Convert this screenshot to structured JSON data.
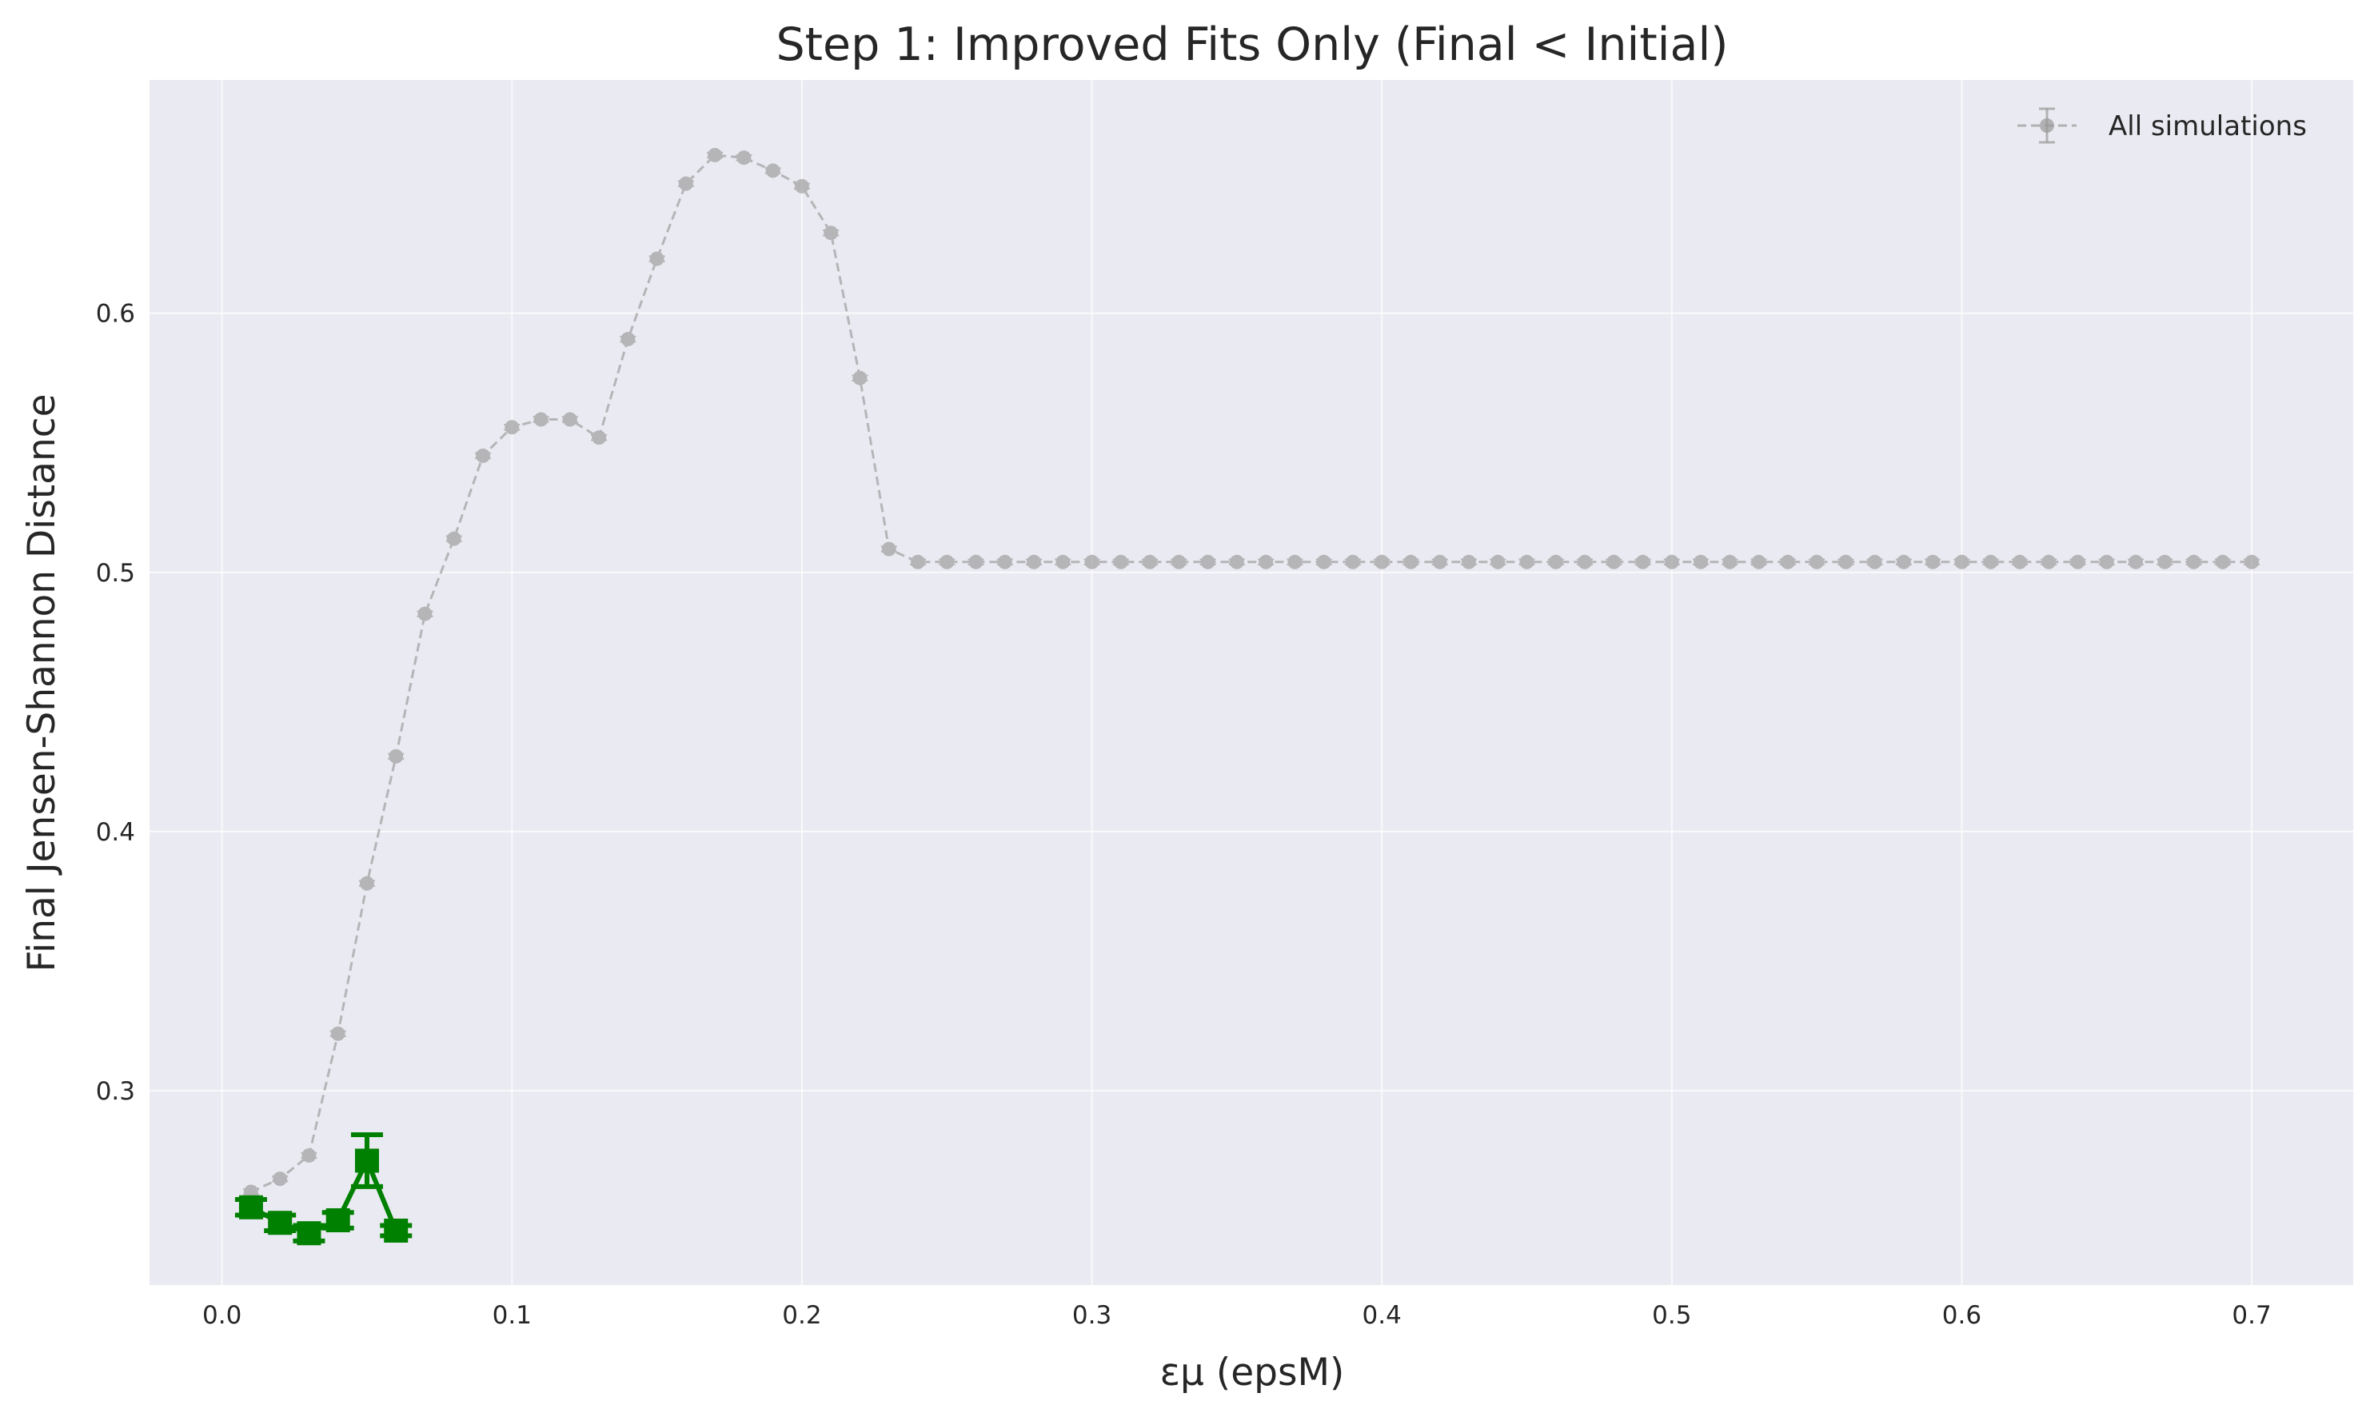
{
  "chart_data": {
    "type": "line",
    "title": "Step 1: Improved Fits Only (Final < Initial)",
    "xlabel": "εμ (epsM)",
    "ylabel": "Final Jensen-Shannon Distance",
    "xlim": [
      -0.025,
      0.735
    ],
    "ylim": [
      0.225,
      0.69
    ],
    "xticks": [
      0.0,
      0.1,
      0.2,
      0.3,
      0.4,
      0.5,
      0.6,
      0.7
    ],
    "xtick_labels": [
      "0.0",
      "0.1",
      "0.2",
      "0.3",
      "0.4",
      "0.5",
      "0.6",
      "0.7"
    ],
    "yticks": [
      0.3,
      0.4,
      0.5,
      0.6
    ],
    "ytick_labels": [
      "0.3",
      "0.4",
      "0.5",
      "0.6"
    ],
    "grid": true,
    "background_color": "#eaeaf2",
    "legend": {
      "placement": "top-right",
      "entries": [
        "All simulations"
      ]
    },
    "series": [
      {
        "name": "All simulations",
        "color": "#999999",
        "style": "dashed",
        "marker": "circle",
        "x": [
          0.01,
          0.02,
          0.03,
          0.04,
          0.05,
          0.06,
          0.07,
          0.08,
          0.09,
          0.1,
          0.11,
          0.12,
          0.13,
          0.14,
          0.15,
          0.16,
          0.17,
          0.18,
          0.19,
          0.2,
          0.21,
          0.22,
          0.23,
          0.24,
          0.25,
          0.26,
          0.27,
          0.28,
          0.29,
          0.3,
          0.31,
          0.32,
          0.33,
          0.34,
          0.35,
          0.36,
          0.37,
          0.38,
          0.39,
          0.4,
          0.41,
          0.42,
          0.43,
          0.44,
          0.45,
          0.46,
          0.47,
          0.48,
          0.49,
          0.5,
          0.51,
          0.52,
          0.53,
          0.54,
          0.55,
          0.56,
          0.57,
          0.58,
          0.59,
          0.6,
          0.61,
          0.62,
          0.63,
          0.64,
          0.65,
          0.66,
          0.67,
          0.68,
          0.69,
          0.7
        ],
        "y": [
          0.261,
          0.266,
          0.275,
          0.322,
          0.38,
          0.429,
          0.484,
          0.513,
          0.545,
          0.556,
          0.559,
          0.559,
          0.552,
          0.59,
          0.621,
          0.65,
          0.661,
          0.66,
          0.655,
          0.649,
          0.631,
          0.575,
          0.509,
          0.504,
          0.504,
          0.504,
          0.504,
          0.504,
          0.504,
          0.504,
          0.504,
          0.504,
          0.504,
          0.504,
          0.504,
          0.504,
          0.504,
          0.504,
          0.504,
          0.504,
          0.504,
          0.504,
          0.504,
          0.504,
          0.504,
          0.504,
          0.504,
          0.504,
          0.504,
          0.504,
          0.504,
          0.504,
          0.504,
          0.504,
          0.504,
          0.504,
          0.504,
          0.504,
          0.504,
          0.504,
          0.504,
          0.504,
          0.504,
          0.504,
          0.504,
          0.504,
          0.504,
          0.504,
          0.504,
          0.504
        ],
        "yerr": 0.001
      },
      {
        "color": "#008000",
        "style": "solid",
        "marker": "square",
        "x": [
          0.01,
          0.02,
          0.03,
          0.04,
          0.05,
          0.06
        ],
        "y": [
          0.255,
          0.249,
          0.245,
          0.25,
          0.273,
          0.246
        ],
        "yerr": [
          0.003,
          0.003,
          0.003,
          0.003,
          0.01,
          0.002
        ]
      }
    ]
  }
}
